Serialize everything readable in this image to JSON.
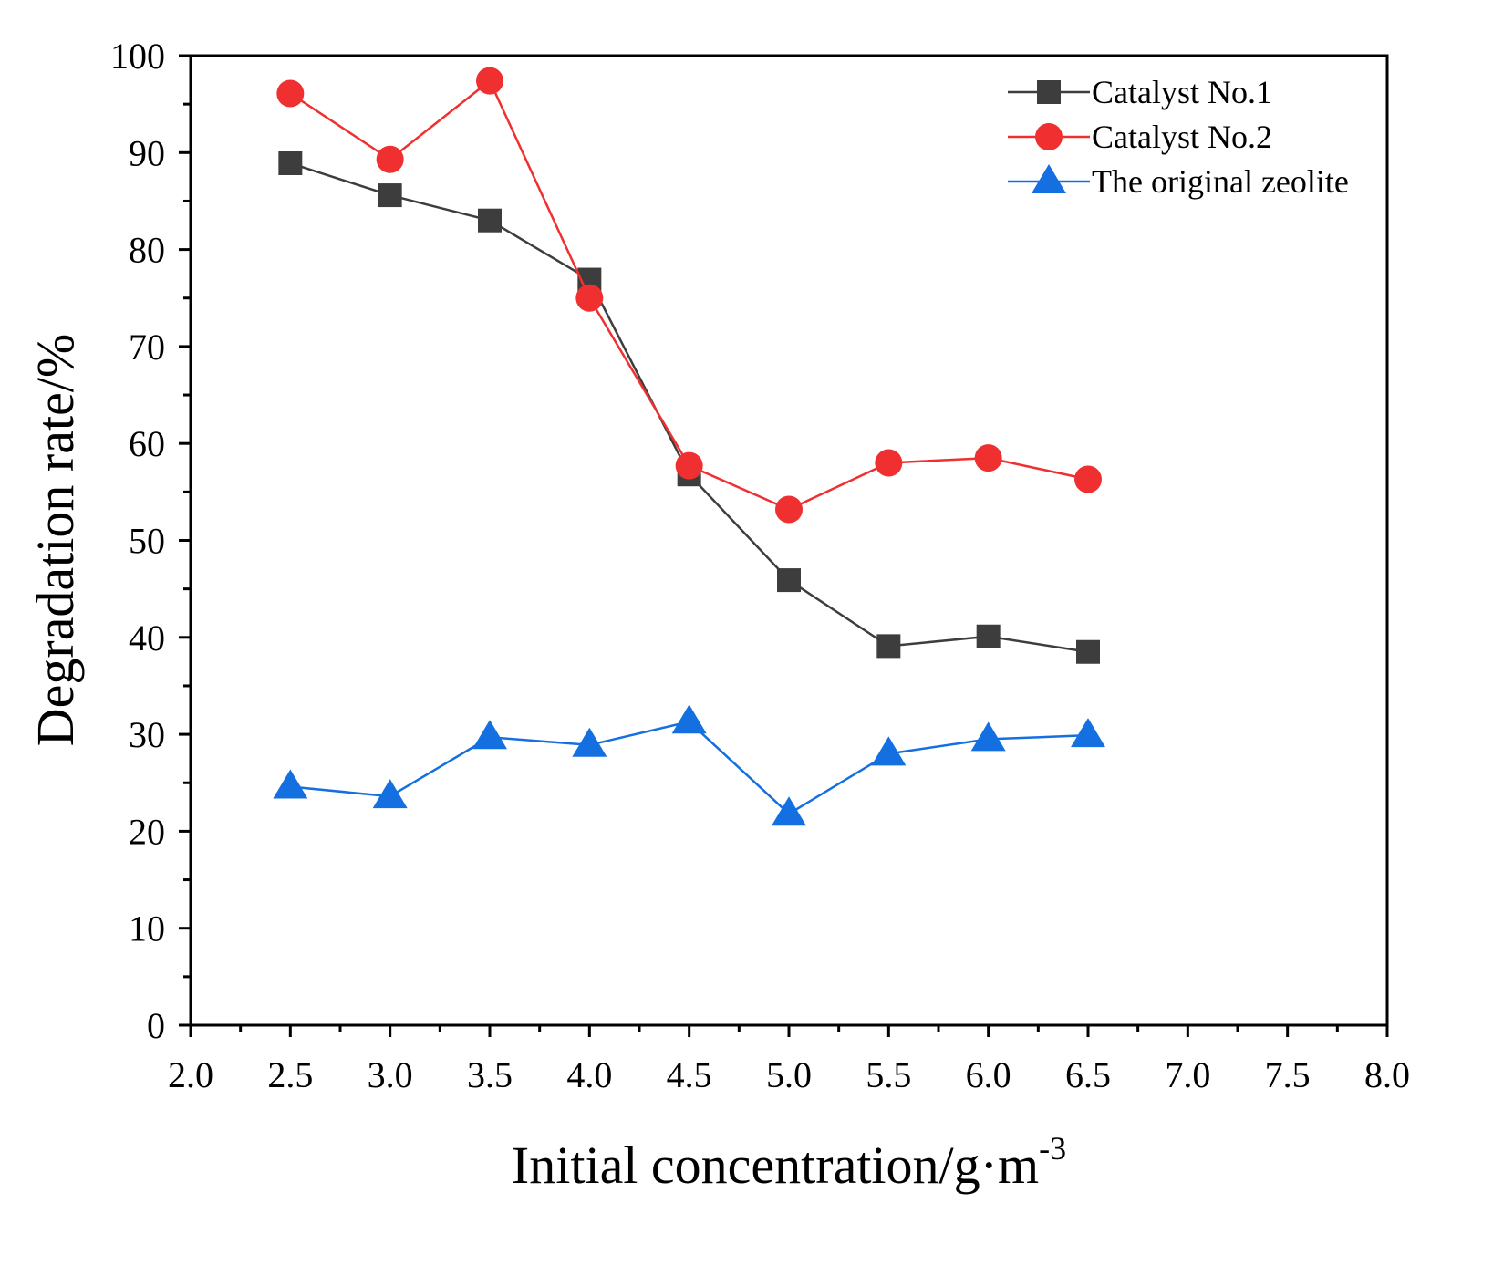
{
  "chart_data": {
    "type": "line",
    "title": "",
    "xlabel": "Initial concentration/g·m",
    "xlabel_superscript": "-3",
    "ylabel": "Degradation rate/%",
    "xlim": [
      2.0,
      8.0
    ],
    "ylim": [
      0,
      100
    ],
    "xticks": [
      "2.0",
      "2.5",
      "3.0",
      "3.5",
      "4.0",
      "4.5",
      "5.0",
      "5.5",
      "6.0",
      "6.5",
      "7.0",
      "7.5",
      "8.0"
    ],
    "yticks": [
      "0",
      "10",
      "20",
      "30",
      "40",
      "50",
      "60",
      "70",
      "80",
      "90",
      "100"
    ],
    "grid": false,
    "legend_position": "top-right",
    "x": [
      2.5,
      3.0,
      3.5,
      4.0,
      4.5,
      5.0,
      5.5,
      6.0,
      6.5
    ],
    "series": [
      {
        "name": "Catalyst No.1",
        "color": "#3d3d3d",
        "marker": "square",
        "values": [
          88.9,
          85.6,
          83.0,
          76.9,
          56.8,
          45.9,
          39.1,
          40.1,
          38.5
        ]
      },
      {
        "name": "Catalyst No.2",
        "color": "#f03030",
        "marker": "circle",
        "values": [
          96.1,
          89.3,
          97.4,
          75.0,
          57.7,
          53.2,
          58.0,
          58.5,
          56.3
        ]
      },
      {
        "name": "The original zeolite",
        "color": "#1470e0",
        "marker": "triangle",
        "values": [
          24.6,
          23.6,
          29.7,
          28.9,
          31.3,
          21.8,
          28.0,
          29.5,
          29.9
        ]
      }
    ]
  }
}
